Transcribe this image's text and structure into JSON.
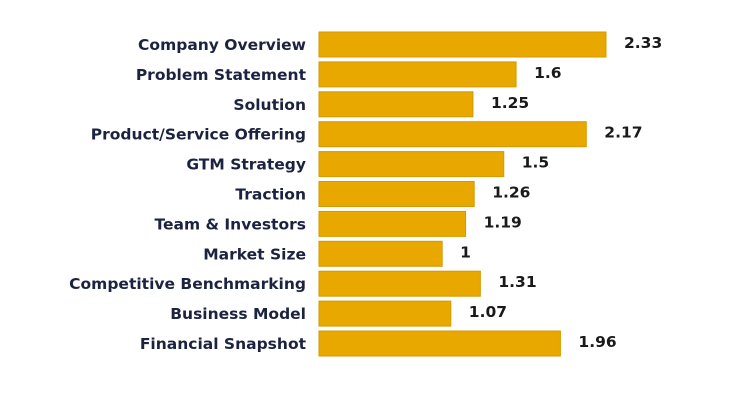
{
  "chart_data": {
    "type": "bar",
    "orientation": "horizontal",
    "categories": [
      "Company Overview",
      "Problem Statement",
      "Solution",
      "Product/Service Offering",
      "GTM Strategy",
      "Traction",
      "Team & Investors",
      "Market Size",
      "Competitive Benchmarking",
      "Business Model",
      "Financial Snapshot"
    ],
    "values": [
      2.33,
      1.6,
      1.25,
      2.17,
      1.5,
      1.26,
      1.19,
      1,
      1.31,
      1.07,
      1.96
    ],
    "value_labels": [
      "2.33",
      "1.6",
      "1.25",
      "2.17",
      "1.5",
      "1.26",
      "1.19",
      "1",
      "1.31",
      "1.07",
      "1.96"
    ],
    "title": "",
    "xlabel": "",
    "ylabel": "",
    "xlim": [
      0,
      2.33
    ],
    "grid": false,
    "legend": "none",
    "colors": {
      "bar": "#e8a800",
      "bar_edge": "#d49a00",
      "category_text": "#1b2340",
      "value_text": "#1a1a1a"
    }
  }
}
